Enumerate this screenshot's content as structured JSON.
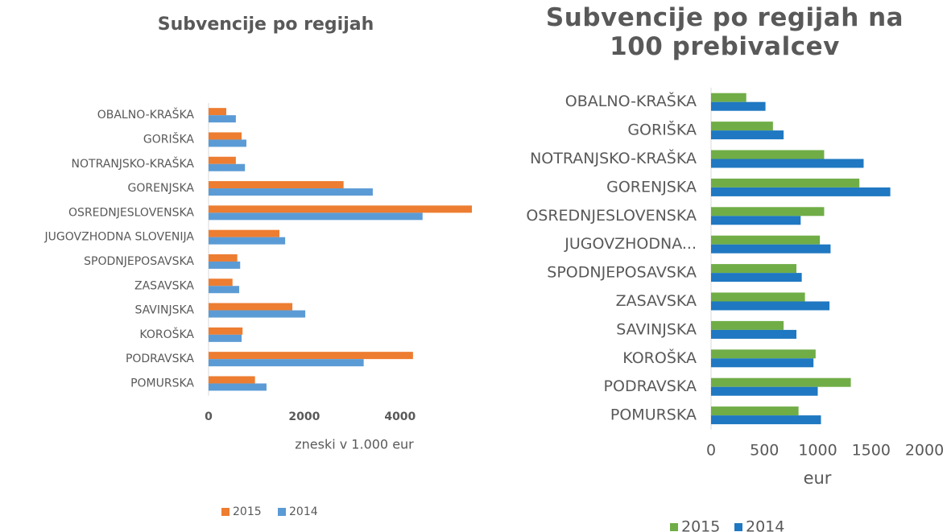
{
  "chart_data": [
    {
      "type": "bar",
      "orientation": "horizontal",
      "title": "Subvencije po regijah",
      "x_label": "zneski v 1.000 eur",
      "categories": [
        "OBALNO-KRAŠKA",
        "GORIŠKA",
        "NOTRANJSKO-KRAŠKA",
        "GORENJSKA",
        "OSREDNJESLOVENSKA",
        "JUGOVZHODNA SLOVENIJA",
        "SPODNJEPOSAVSKA",
        "ZASAVSKA",
        "SAVINJSKA",
        "KOROŠKA",
        "PODRAVSKA",
        "POMURSKA"
      ],
      "series": [
        {
          "name": "2015",
          "color": "#ed7d31",
          "values": [
            370,
            690,
            570,
            2820,
            5500,
            1480,
            600,
            500,
            1750,
            710,
            4270,
            970
          ]
        },
        {
          "name": "2014",
          "color": "#5b9bd5",
          "values": [
            570,
            790,
            760,
            3430,
            4470,
            1600,
            660,
            640,
            2020,
            690,
            3240,
            1210
          ]
        }
      ],
      "xlim": [
        0,
        5500
      ],
      "xticks": [
        0,
        2000,
        4000
      ],
      "grid": false,
      "legend": "bottom"
    },
    {
      "type": "bar",
      "orientation": "horizontal",
      "title": "Subvencije po regijah na 100 prebivalcev",
      "x_label": "eur",
      "categories": [
        "OBALNO-KRAŠKA",
        "GORIŠKA",
        "NOTRANJSKO-KRAŠKA",
        "GORENJSKA",
        "OSREDNJESLOVENSKA",
        "JUGOVZHODNA...",
        "SPODNJEPOSAVSKA",
        "ZASAVSKA",
        "SAVINJSKA",
        "KOROŠKA",
        "PODRAVSKA",
        "POMURSKA"
      ],
      "series": [
        {
          "name": "2015",
          "color": "#70ad47",
          "values": [
            330,
            580,
            1060,
            1390,
            1060,
            1020,
            800,
            880,
            680,
            980,
            1310,
            820
          ]
        },
        {
          "name": "2014",
          "color": "#1f78c1",
          "values": [
            510,
            680,
            1430,
            1680,
            840,
            1120,
            850,
            1110,
            800,
            960,
            1000,
            1030
          ]
        }
      ],
      "xlim": [
        0,
        2000
      ],
      "xticks": [
        0,
        500,
        1000,
        1500,
        2000
      ],
      "grid": false,
      "legend": "bottom"
    }
  ]
}
